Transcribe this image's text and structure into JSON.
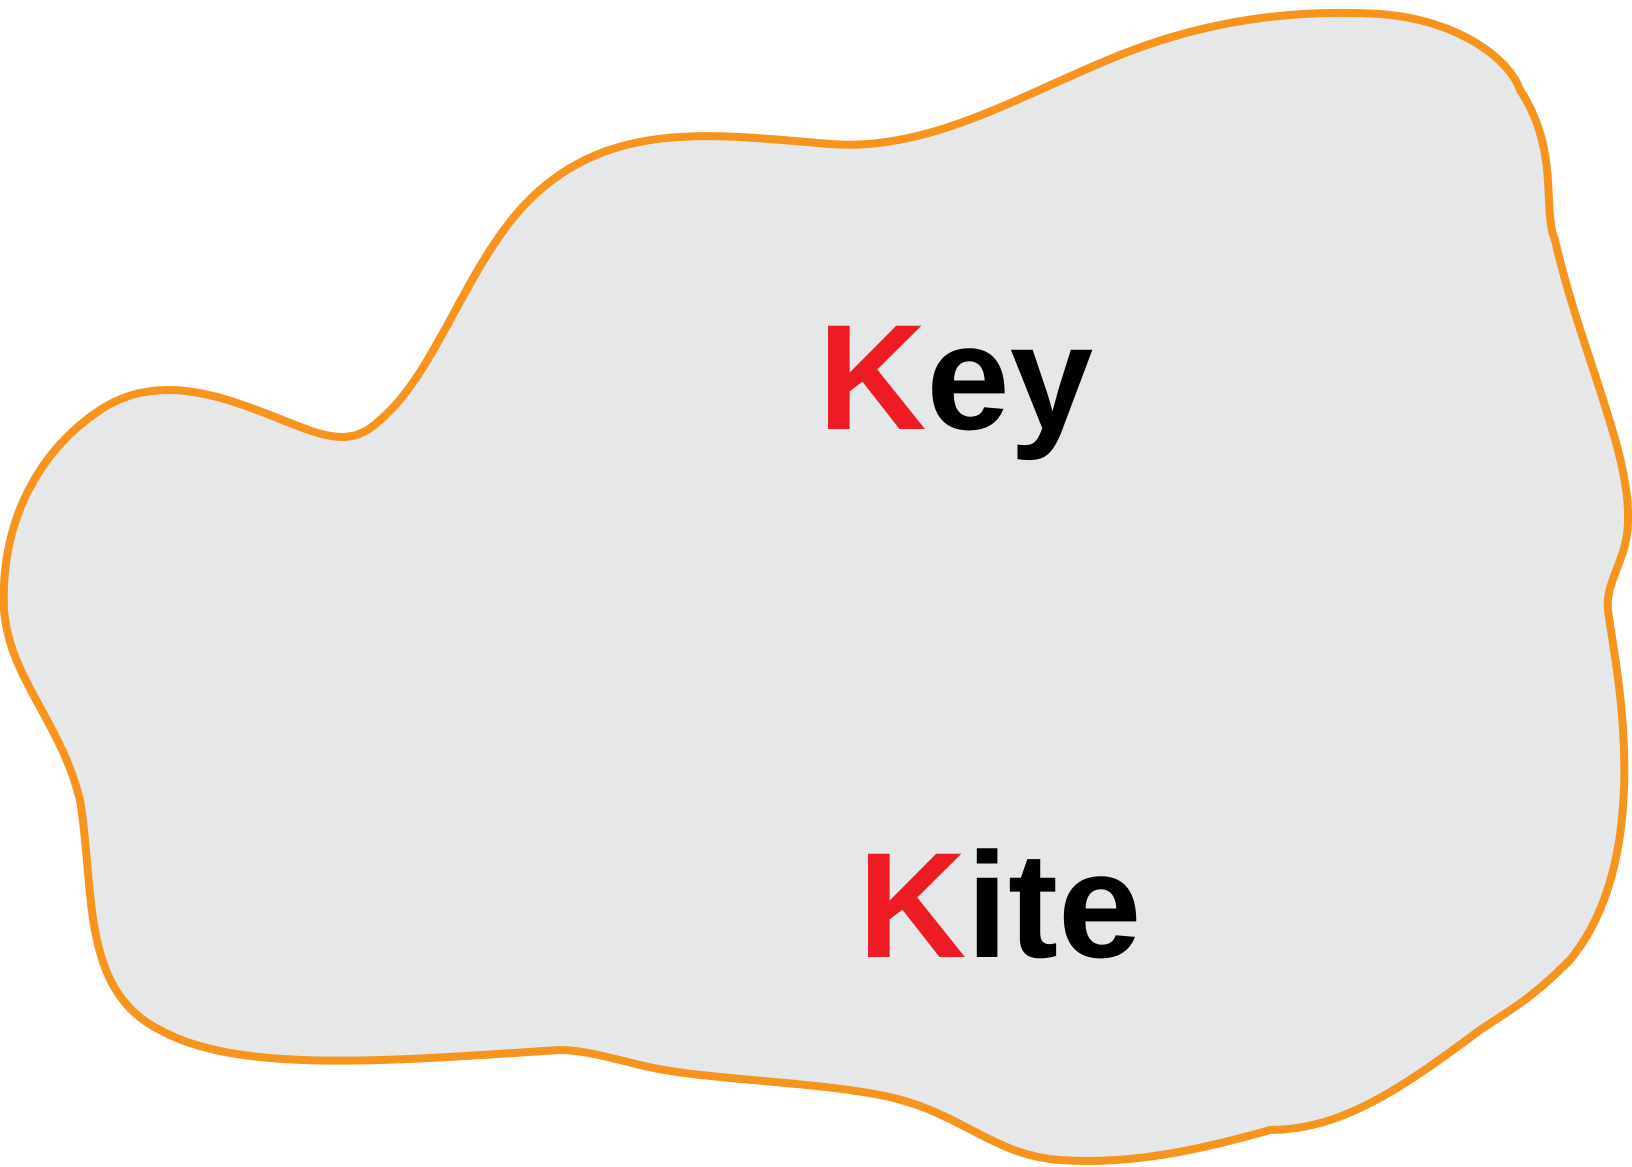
{
  "colors": {
    "blob_fill": "#e6e7e9",
    "blob_outline": "#f7941d",
    "initial_letter": "#ed1c24",
    "text": "#000000"
  },
  "words": [
    {
      "initial": "K",
      "rest": "ey"
    },
    {
      "initial": "K",
      "rest": "ite"
    }
  ]
}
